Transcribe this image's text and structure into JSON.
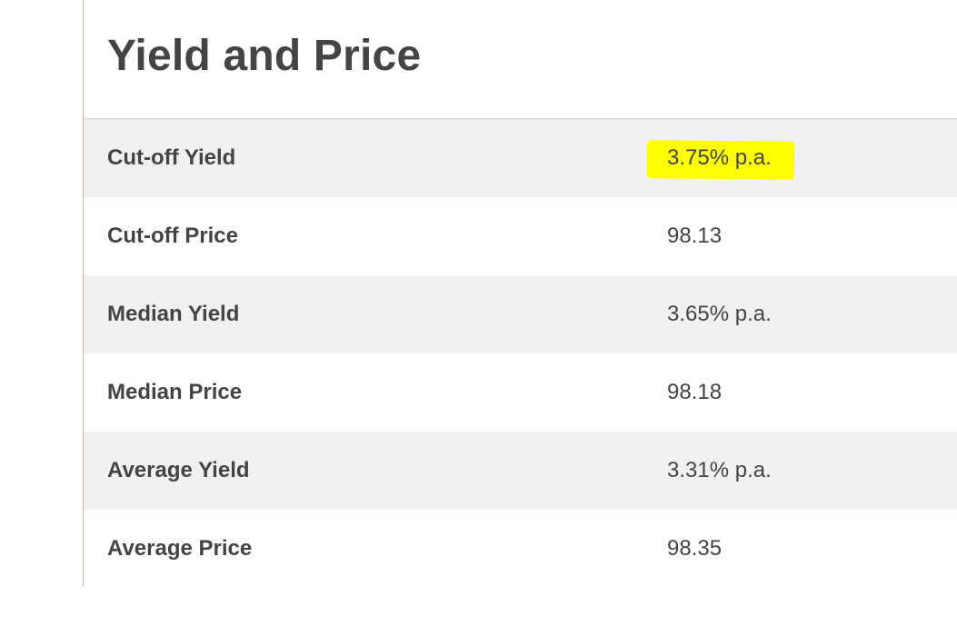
{
  "section": {
    "title": "Yield and Price"
  },
  "rows": [
    {
      "label": "Cut-off Yield",
      "value": "3.75% p.a.",
      "highlighted": true
    },
    {
      "label": "Cut-off Price",
      "value": "98.13",
      "highlighted": false
    },
    {
      "label": "Median Yield",
      "value": "3.65% p.a.",
      "highlighted": false
    },
    {
      "label": "Median Price",
      "value": "98.18",
      "highlighted": false
    },
    {
      "label": "Average Yield",
      "value": "3.31% p.a.",
      "highlighted": false
    },
    {
      "label": "Average Price",
      "value": "98.35",
      "highlighted": false
    }
  ],
  "colors": {
    "highlight": "#ffff00",
    "row_shaded": "#f1f1f1",
    "text": "#444444",
    "panel_border": "#c8b99a"
  }
}
